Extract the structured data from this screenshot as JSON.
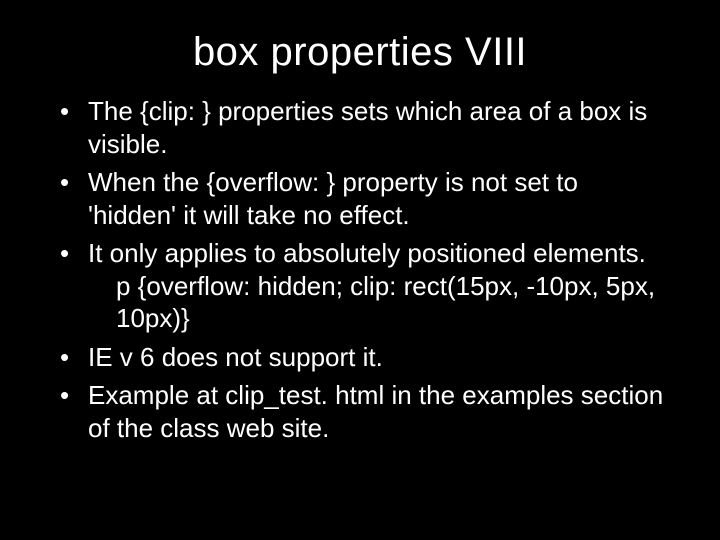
{
  "background_color": "#000000",
  "text_color": "#ffffff",
  "font_family": "Arial",
  "title": "box properties VIII",
  "title_fontsize": 40,
  "body_fontsize": 26,
  "bullets": [
    {
      "text": "The {clip: } properties sets which area of a box is visible."
    },
    {
      "text": "When the {overflow: } property is not set to 'hidden' it will take no effect."
    },
    {
      "text": "It only applies to absolutely positioned elements.",
      "sub": "p {overflow: hidden;  clip: rect(15px, -10px, 5px, 10px)}"
    },
    {
      "text": "IE v 6 does not support it."
    },
    {
      "text": "Example at clip_test. html in the examples section of the class web site."
    }
  ]
}
